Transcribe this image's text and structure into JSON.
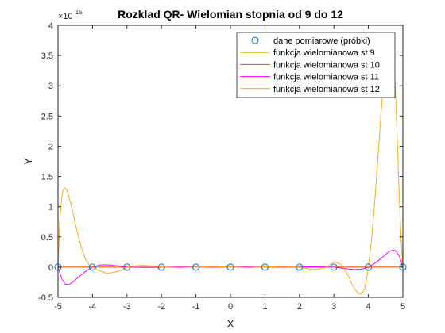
{
  "chart_data": {
    "type": "line",
    "title": "Rozklad QR- Wielomian stopnia od 9 do 12",
    "xlabel": "X",
    "ylabel": "Y",
    "y_exponent_label": "×10",
    "y_exponent_power": "15",
    "xlim": [
      -5,
      5
    ],
    "ylim": [
      -0.5,
      4
    ],
    "x_ticks": [
      -5,
      -4,
      -3,
      -2,
      -1,
      0,
      1,
      2,
      3,
      4,
      5
    ],
    "y_ticks": [
      -0.5,
      0,
      0.5,
      1,
      1.5,
      2,
      2.5,
      3,
      3.5,
      4
    ],
    "y_tick_labels": [
      "-0.5",
      "0",
      "0.5",
      "1",
      "1.5",
      "2",
      "2.5",
      "3",
      "3.5",
      "4"
    ],
    "grid": false,
    "legend_position": "top-right",
    "samples": {
      "name": "dane pomiarowe (próbki)",
      "x": [
        -5,
        -4,
        -3,
        -2,
        -1,
        0,
        1,
        2,
        3,
        4,
        5
      ],
      "y": [
        0,
        0,
        0,
        0,
        0,
        0,
        0,
        0,
        0,
        0,
        0
      ],
      "marker": "circle",
      "color": "#0072bd"
    },
    "series": [
      {
        "name": "funkcja wielomianowa st 9",
        "color": "#edb120",
        "x": [
          -5,
          -4,
          -3,
          -2,
          -1,
          0,
          1,
          2,
          3,
          4,
          5
        ],
        "y": [
          0,
          0,
          0,
          0,
          0,
          0,
          0,
          0,
          0,
          0,
          0
        ]
      },
      {
        "name": "funkcja wielomianowa st 10",
        "color": "#d95319",
        "x": [
          -5,
          -4,
          -3,
          -2,
          -1,
          0,
          1,
          2,
          3,
          4,
          5
        ],
        "y": [
          0,
          0,
          0,
          0,
          0,
          0,
          0,
          0,
          0,
          0,
          0
        ]
      },
      {
        "name": "funkcja wielomianowa st 11",
        "color": "#ff00ff",
        "x": [
          -5,
          -4.9,
          -4.8,
          -4.7,
          -4.6,
          -4.4,
          -4.2,
          -4,
          -3.8,
          -3.6,
          -3.4,
          -3.2,
          -3,
          -2.5,
          -2,
          -1.5,
          -1,
          -0.5,
          0,
          0.5,
          1,
          1.5,
          2,
          2.5,
          3,
          3.2,
          3.4,
          3.6,
          3.8,
          4,
          4.2,
          4.4,
          4.6,
          4.7,
          4.8,
          4.9,
          5
        ],
        "y": [
          0,
          -0.18,
          -0.28,
          -0.29,
          -0.26,
          -0.16,
          -0.07,
          0,
          0.035,
          0.04,
          0.03,
          0.015,
          0,
          -0.005,
          -0.003,
          0,
          0.002,
          0,
          0,
          0,
          -0.002,
          0,
          0.003,
          0.005,
          0,
          -0.015,
          -0.03,
          -0.04,
          -0.035,
          0,
          0.07,
          0.16,
          0.26,
          0.28,
          0.27,
          0.18,
          0
        ]
      },
      {
        "name": "funkcja wielomianowa st 12",
        "color": "#edb120",
        "x": [
          -5,
          -4.95,
          -4.9,
          -4.85,
          -4.8,
          -4.75,
          -4.7,
          -4.6,
          -4.5,
          -4.4,
          -4.3,
          -4.2,
          -4.1,
          -4,
          -3.8,
          -3.6,
          -3.4,
          -3.2,
          -3,
          -2.8,
          -2.6,
          -2.4,
          -2.2,
          -2,
          -1.5,
          -1,
          -0.5,
          0,
          0.5,
          1,
          1.5,
          2,
          2.2,
          2.4,
          2.6,
          2.8,
          3,
          3.2,
          3.4,
          3.5,
          3.6,
          3.7,
          3.8,
          3.9,
          4,
          4.1,
          4.2,
          4.3,
          4.4,
          4.5,
          4.6,
          4.65,
          4.7,
          4.75,
          4.8,
          4.85,
          4.9,
          4.95,
          5
        ],
        "y": [
          0,
          0.75,
          1.12,
          1.28,
          1.31,
          1.28,
          1.2,
          0.98,
          0.72,
          0.48,
          0.28,
          0.13,
          0.04,
          0,
          -0.06,
          -0.1,
          -0.09,
          -0.06,
          0,
          0.02,
          0.03,
          0.025,
          0.015,
          0,
          -0.01,
          0,
          0.01,
          0,
          -0.01,
          0,
          0.01,
          0,
          -0.02,
          -0.04,
          -0.03,
          0,
          0.09,
          0.05,
          -0.12,
          -0.25,
          -0.36,
          -0.43,
          -0.45,
          -0.35,
          0,
          0.5,
          1.2,
          2.0,
          2.8,
          3.45,
          3.78,
          3.8,
          3.65,
          3.3,
          2.7,
          1.9,
          1.1,
          0.45,
          0
        ]
      }
    ]
  }
}
